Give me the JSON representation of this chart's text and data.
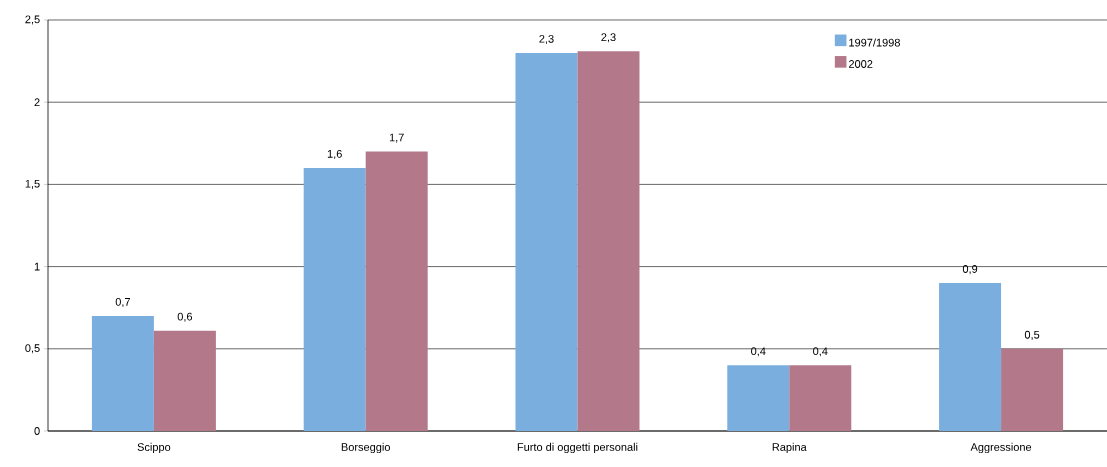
{
  "chart_data": {
    "type": "bar",
    "categories": [
      "Scippo",
      "Borseggio",
      "Furto di oggetti personali",
      "Rapina",
      "Aggressione"
    ],
    "series": [
      {
        "name": "1997/1998",
        "color": "#7aaedf",
        "values": [
          0.7,
          1.6,
          2.3,
          0.4,
          0.9
        ],
        "value_labels": [
          "0,7",
          "1,6",
          "2,3",
          "0,4",
          "0,9"
        ]
      },
      {
        "name": "2002",
        "color": "#b3798b",
        "values": [
          0.61,
          1.7,
          2.31,
          0.4,
          0.5
        ],
        "value_labels": [
          "0,6",
          "1,7",
          "2,3",
          "0,4",
          "0,5"
        ]
      }
    ],
    "ylim": [
      0,
      2.5
    ],
    "yticks": [
      0,
      {
        "value": 0.5,
        "label": "0,5"
      },
      1,
      {
        "value": 1.5,
        "label": "1,5"
      },
      2,
      {
        "value": 2.5,
        "label": "2,5"
      }
    ],
    "grid": "y",
    "legend": "top right"
  }
}
